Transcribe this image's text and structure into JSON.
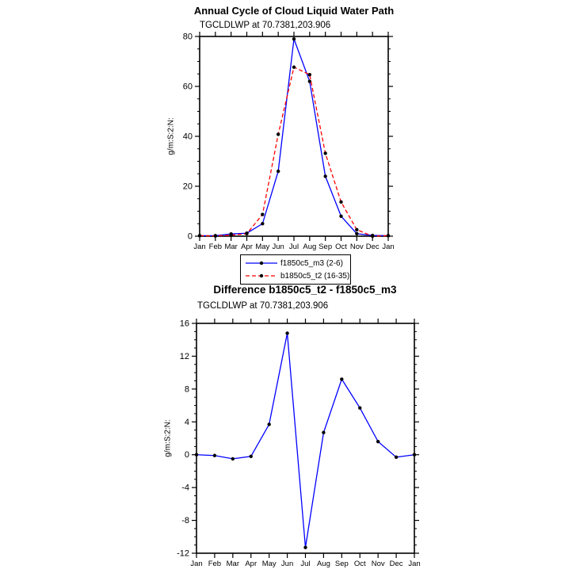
{
  "page": {
    "background": "#ffffff",
    "axis_color": "#000000",
    "text_color": "#000000"
  },
  "chart_data": [
    {
      "type": "line",
      "title": "Annual Cycle of Cloud Liquid Water Path",
      "subtitle": "TGCLDLWP at 70.7381,203.906",
      "xlabel": "",
      "ylabel": "g/m:S:2:N:",
      "categories": [
        "Jan",
        "Feb",
        "Mar",
        "Apr",
        "May",
        "Jun",
        "Jul",
        "Aug",
        "Sep",
        "Oct",
        "Nov",
        "Dec",
        "Jan"
      ],
      "ylim": [
        0,
        80
      ],
      "ytick_step": 20,
      "yminor_step": 5,
      "ytick_labels": [
        "0",
        "20",
        "40",
        "60",
        "80"
      ],
      "grid": false,
      "legend_position": "below-center",
      "marker_color": "#000000",
      "series": [
        {
          "name": "f1850c5_m3 (2-6)",
          "color": "#0000ff",
          "style": "solid",
          "values": [
            0.2,
            0.2,
            0.9,
            1.2,
            5.0,
            26.0,
            79.0,
            62.0,
            24.0,
            8.0,
            1.0,
            0.3,
            0.2
          ]
        },
        {
          "name": "b1850c5_t2 (16-35)",
          "color": "#ff0000",
          "style": "dashed",
          "values": [
            0.2,
            0.1,
            0.4,
            1.0,
            8.7,
            40.8,
            67.7,
            64.7,
            33.2,
            13.7,
            2.6,
            0.0,
            0.2
          ]
        }
      ]
    },
    {
      "type": "line",
      "title": "Difference b1850c5_t2 - f1850c5_m3",
      "subtitle": "TGCLDLWP at 70.7381,203.906",
      "xlabel": "",
      "ylabel": "g/m:S:2:N:",
      "categories": [
        "Jan",
        "Feb",
        "Mar",
        "Apr",
        "May",
        "Jun",
        "Jul",
        "Aug",
        "Sep",
        "Oct",
        "Nov",
        "Dec",
        "Jan"
      ],
      "ylim": [
        -12,
        16
      ],
      "ytick_step": 4,
      "yminor_step": 1,
      "ytick_labels": [
        "-12",
        "-8",
        "-4",
        "0",
        "4",
        "8",
        "12",
        "16"
      ],
      "grid": false,
      "legend_position": "none",
      "marker_color": "#000000",
      "series": [
        {
          "name": "difference",
          "color": "#0000ff",
          "style": "solid",
          "values": [
            0.0,
            -0.1,
            -0.5,
            -0.2,
            3.7,
            14.8,
            -11.3,
            2.7,
            9.2,
            5.7,
            1.6,
            -0.3,
            0.0
          ]
        }
      ]
    }
  ]
}
